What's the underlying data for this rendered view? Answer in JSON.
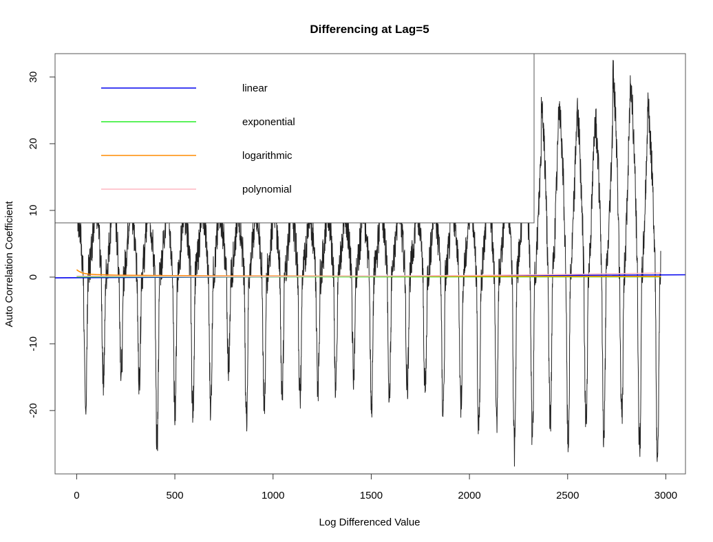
{
  "chart_data": {
    "type": "line",
    "title": "Differencing at Lag=5",
    "xlabel": "Log Differenced Value",
    "ylabel": "Auto Correlation Coefficient",
    "xlim": [
      -110,
      3100
    ],
    "ylim": [
      -29.5,
      33.5
    ],
    "xticks": [
      0,
      500,
      1000,
      1500,
      2000,
      2500,
      3000
    ],
    "yticks": [
      -20,
      -10,
      0,
      10,
      20,
      30
    ],
    "grid": false,
    "legend_position": "top-left",
    "legend": [
      "linear",
      "exponential",
      "logarithmic",
      "polynomial"
    ],
    "series": [
      {
        "name": "",
        "color": "#222222",
        "kind": "differenced-series",
        "n_points": 2975,
        "period": 91,
        "cycles": [
          {
            "x": 0,
            "peak": 10,
            "trough": -20
          },
          {
            "x": 91,
            "peak": 12,
            "trough": -15
          },
          {
            "x": 182,
            "peak": 12,
            "trough": -14
          },
          {
            "x": 273,
            "peak": 11,
            "trough": -15
          },
          {
            "x": 364,
            "peak": 10,
            "trough": -25
          },
          {
            "x": 455,
            "peak": 11,
            "trough": -20
          },
          {
            "x": 546,
            "peak": 10,
            "trough": -20
          },
          {
            "x": 637,
            "peak": 11,
            "trough": -19
          },
          {
            "x": 728,
            "peak": 10,
            "trough": -13
          },
          {
            "x": 819,
            "peak": 10,
            "trough": -21
          },
          {
            "x": 910,
            "peak": 10,
            "trough": -19
          },
          {
            "x": 1001,
            "peak": 11,
            "trough": -17
          },
          {
            "x": 1092,
            "peak": 10,
            "trough": -18
          },
          {
            "x": 1183,
            "peak": 10,
            "trough": -16
          },
          {
            "x": 1274,
            "peak": 11,
            "trough": -17
          },
          {
            "x": 1365,
            "peak": 10,
            "trough": -14
          },
          {
            "x": 1456,
            "peak": 10,
            "trough": -19
          },
          {
            "x": 1547,
            "peak": 11,
            "trough": -17
          },
          {
            "x": 1638,
            "peak": 10,
            "trough": -16
          },
          {
            "x": 1729,
            "peak": 11,
            "trough": -17
          },
          {
            "x": 1820,
            "peak": 10,
            "trough": -20
          },
          {
            "x": 1911,
            "peak": 11,
            "trough": -19
          },
          {
            "x": 2002,
            "peak": 12,
            "trough": -23
          },
          {
            "x": 2093,
            "peak": 13,
            "trough": -21
          },
          {
            "x": 2184,
            "peak": 14,
            "trough": -26
          },
          {
            "x": 2275,
            "peak": 20,
            "trough": -24
          },
          {
            "x": 2366,
            "peak": 27,
            "trough": -22
          },
          {
            "x": 2457,
            "peak": 26,
            "trough": -25
          },
          {
            "x": 2548,
            "peak": 25,
            "trough": -22
          },
          {
            "x": 2639,
            "peak": 24,
            "trough": -24
          },
          {
            "x": 2730,
            "peak": 31,
            "trough": -21
          },
          {
            "x": 2821,
            "peak": 29,
            "trough": -26
          },
          {
            "x": 2912,
            "peak": 24,
            "trough": -27
          }
        ]
      },
      {
        "name": "linear",
        "color": "#0000ee",
        "x": [
          -110,
          3100
        ],
        "y": [
          -0.1,
          0.35
        ]
      },
      {
        "name": "exponential",
        "color": "#22ee22",
        "x": [
          0,
          2975
        ],
        "y": [
          0.05,
          0.05
        ]
      },
      {
        "name": "logarithmic",
        "color": "#ff8c00",
        "x": [
          0,
          10,
          30,
          60,
          100,
          200,
          400,
          700,
          1000,
          1500,
          2000,
          2500,
          2975
        ],
        "y": [
          1.1,
          0.9,
          0.6,
          0.45,
          0.38,
          0.3,
          0.24,
          0.2,
          0.17,
          0.14,
          0.12,
          0.11,
          0.1
        ]
      },
      {
        "name": "polynomial",
        "color": "#ffb6c1",
        "x": [
          0,
          300,
          600,
          1000,
          1500,
          2000,
          2500,
          2975
        ],
        "y": [
          0.15,
          0.12,
          0.1,
          0.1,
          0.15,
          0.25,
          0.4,
          0.6
        ]
      }
    ]
  }
}
